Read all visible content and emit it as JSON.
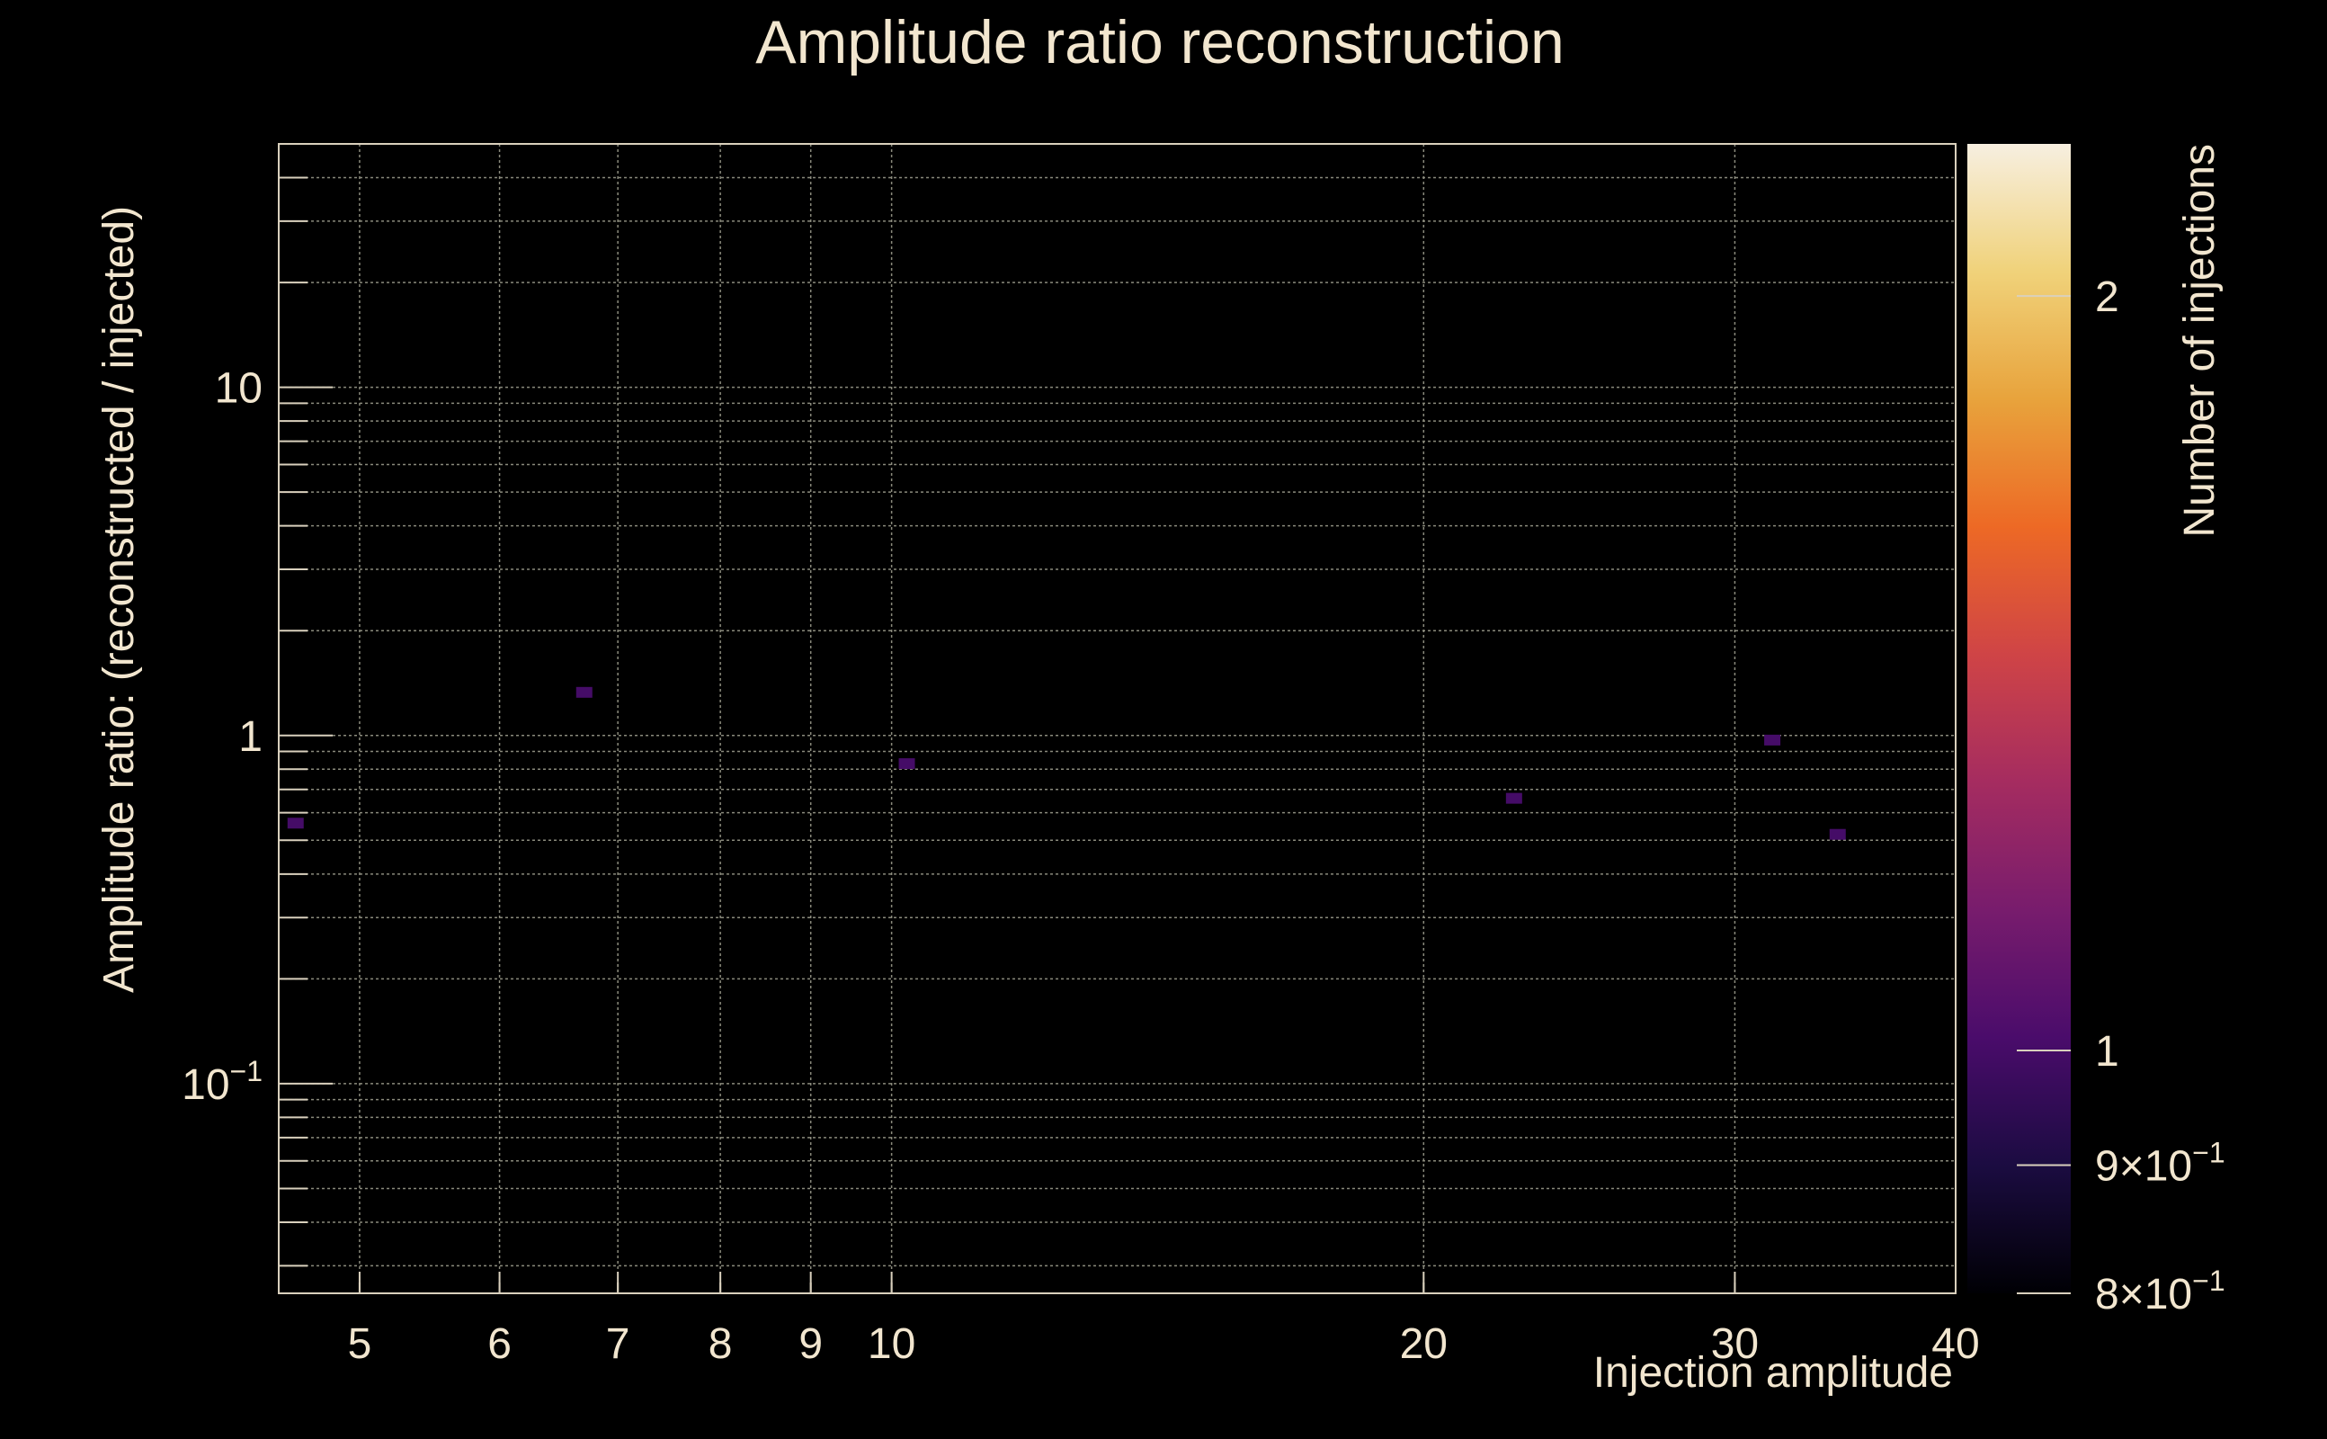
{
  "chart_data": {
    "type": "heatmap",
    "title": "Amplitude ratio  reconstruction",
    "xlabel": "Injection amplitude",
    "ylabel": "Amplitude ratio: (reconstructed / injected)",
    "colorbar_label": "Number of injections",
    "x_scale": "log",
    "y_scale": "log",
    "color_scale": "log",
    "xlim": [
      4.5,
      40
    ],
    "ylim": [
      0.025,
      50
    ],
    "clim": [
      0.8,
      2.3
    ],
    "grid": true,
    "x_ticks": [
      {
        "value": 5,
        "label": "5"
      },
      {
        "value": 6,
        "label": "6"
      },
      {
        "value": 7,
        "label": "7"
      },
      {
        "value": 8,
        "label": "8"
      },
      {
        "value": 9,
        "label": "9"
      },
      {
        "value": 10,
        "label": "10"
      },
      {
        "value": 20,
        "label": "20"
      },
      {
        "value": 30,
        "label": "30"
      },
      {
        "value": 40,
        "label": "40"
      }
    ],
    "y_ticks": [
      {
        "value": 0.1,
        "base": "10",
        "exp": "−1"
      },
      {
        "value": 1,
        "base": "1",
        "exp": ""
      },
      {
        "value": 10,
        "base": "10",
        "exp": ""
      }
    ],
    "colorbar_ticks": [
      {
        "value": 0.8,
        "base": "8×10",
        "exp": "−1"
      },
      {
        "value": 0.9,
        "base": "9×10",
        "exp": "−1"
      },
      {
        "value": 1,
        "base": "1",
        "exp": ""
      },
      {
        "value": 2,
        "base": "2",
        "exp": ""
      }
    ],
    "colormap": [
      "#000004",
      "#1b0c41",
      "#4a0c6b",
      "#781c6d",
      "#a52c60",
      "#cf4446",
      "#ed6925",
      "#e8a33c",
      "#f0d27a",
      "#f7efe0"
    ],
    "points": [
      {
        "x": 4.6,
        "y": 0.56,
        "count": 1
      },
      {
        "x": 6.7,
        "y": 1.33,
        "count": 1
      },
      {
        "x": 10.2,
        "y": 0.83,
        "count": 1
      },
      {
        "x": 22.5,
        "y": 0.66,
        "count": 1
      },
      {
        "x": 31.5,
        "y": 0.97,
        "count": 1
      },
      {
        "x": 34.3,
        "y": 0.52,
        "count": 1
      }
    ]
  }
}
